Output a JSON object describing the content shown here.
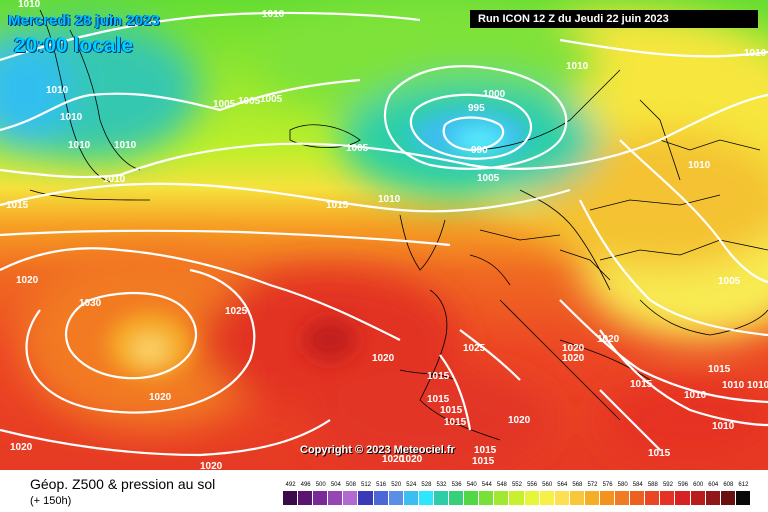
{
  "header": {
    "date_line": "Mercredi 28 juin 2023",
    "time_line": "20:00 locale",
    "run_label": "Run ICON 12 Z du Jeudi 22 juin 2023"
  },
  "copyright": "Copyright © 2023 Meteociel.fr",
  "footer": {
    "title": "Géop. Z500 & pression au sol",
    "subtitle": "(+ 150h)"
  },
  "scale": {
    "values": [
      "492",
      "496",
      "500",
      "504",
      "508",
      "512",
      "516",
      "520",
      "524",
      "528",
      "532",
      "536",
      "540",
      "544",
      "548",
      "552",
      "556",
      "560",
      "564",
      "568",
      "572",
      "576",
      "580",
      "584",
      "588",
      "592",
      "596",
      "600",
      "604",
      "608",
      "612"
    ],
    "colors": [
      "#3b0a4a",
      "#5a1570",
      "#7a2a96",
      "#9646b4",
      "#b06ad0",
      "#3a3ab8",
      "#4d66d6",
      "#5a8ee8",
      "#3cbef0",
      "#2ee6ff",
      "#2ecca8",
      "#36d07a",
      "#52d845",
      "#78e038",
      "#a0e832",
      "#c8f02e",
      "#e8f63a",
      "#f6f048",
      "#fce052",
      "#f8c83a",
      "#f6ae26",
      "#f49220",
      "#f27a22",
      "#ee6022",
      "#ea4624",
      "#e63224",
      "#d62222",
      "#b81c1c",
      "#901818",
      "#6a1010",
      "#0a0a0a"
    ]
  },
  "pressure_labels": [
    {
      "text": "1010",
      "name": "isobar-label-1010-a"
    },
    {
      "text": "1010",
      "name": "isobar-label-1010-b"
    },
    {
      "text": "1010",
      "name": "isobar-label-1010-c"
    },
    {
      "text": "1010",
      "name": "isobar-label-1010-d"
    },
    {
      "text": "1010",
      "name": "isobar-label-1010-e"
    },
    {
      "text": "1010",
      "name": "isobar-label-1010-f"
    },
    {
      "text": "1010",
      "name": "isobar-label-1010-g"
    },
    {
      "text": "1010",
      "name": "isobar-label-1010-h"
    },
    {
      "text": "1010",
      "name": "isobar-label-1010-i"
    },
    {
      "text": "1010",
      "name": "isobar-label-1010-j"
    },
    {
      "text": "1000",
      "name": "isobar-label-1000"
    },
    {
      "text": "995",
      "name": "isobar-label-995"
    },
    {
      "text": "990",
      "name": "isobar-label-990"
    },
    {
      "text": "1005",
      "name": "isobar-label-1005-a"
    },
    {
      "text": "1005",
      "name": "isobar-label-1005-b"
    },
    {
      "text": "1005",
      "name": "isobar-label-1005-c"
    },
    {
      "text": "1005",
      "name": "isobar-label-1005-d"
    },
    {
      "text": "1005",
      "name": "isobar-label-1005-e"
    },
    {
      "text": "1005",
      "name": "isobar-label-1005-f"
    },
    {
      "text": "1015",
      "name": "isobar-label-1015-a"
    },
    {
      "text": "1015",
      "name": "isobar-label-1015-b"
    },
    {
      "text": "1015",
      "name": "isobar-label-1015-c"
    },
    {
      "text": "1015",
      "name": "isobar-label-1015-d"
    },
    {
      "text": "1015",
      "name": "isobar-label-1015-e"
    },
    {
      "text": "1015",
      "name": "isobar-label-1015-f"
    },
    {
      "text": "1015",
      "name": "isobar-label-1015-g"
    },
    {
      "text": "1015",
      "name": "isobar-label-1015-h"
    },
    {
      "text": "1015",
      "name": "isobar-label-1015-i"
    },
    {
      "text": "1015",
      "name": "isobar-label-1015-j"
    },
    {
      "text": "1020",
      "name": "isobar-label-1020-a"
    },
    {
      "text": "1020",
      "name": "isobar-label-1020-b"
    },
    {
      "text": "1020",
      "name": "isobar-label-1020-c"
    },
    {
      "text": "1020",
      "name": "isobar-label-1020-d"
    },
    {
      "text": "1020",
      "name": "isobar-label-1020-e"
    },
    {
      "text": "1020",
      "name": "isobar-label-1020-f"
    },
    {
      "text": "1020",
      "name": "isobar-label-1020-g"
    },
    {
      "text": "1020",
      "name": "isobar-label-1020-h"
    },
    {
      "text": "1020",
      "name": "isobar-label-1020-i"
    },
    {
      "text": "1020",
      "name": "isobar-label-1020-j"
    },
    {
      "text": "1020",
      "name": "isobar-label-1020-k"
    },
    {
      "text": "1025",
      "name": "isobar-label-1025-a"
    },
    {
      "text": "1025",
      "name": "isobar-label-1025-b"
    },
    {
      "text": "1030",
      "name": "isobar-label-1030"
    }
  ]
}
